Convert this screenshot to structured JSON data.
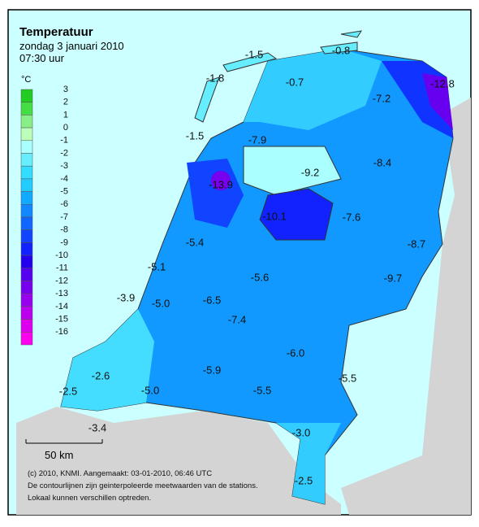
{
  "header": {
    "title": "Temperatuur",
    "date": "zondag 3 januari 2010",
    "time": "07:30 uur"
  },
  "legend": {
    "unit": "°C",
    "levels": [
      {
        "label": "3",
        "color": "#22cc22"
      },
      {
        "label": "2",
        "color": "#44dd44"
      },
      {
        "label": "1",
        "color": "#88ee88"
      },
      {
        "label": "0",
        "color": "#bbffbb"
      },
      {
        "label": "-1",
        "color": "#aaffff"
      },
      {
        "label": "-2",
        "color": "#66eeff"
      },
      {
        "label": "-3",
        "color": "#33ddff"
      },
      {
        "label": "-4",
        "color": "#22ccff"
      },
      {
        "label": "-5",
        "color": "#11aaff"
      },
      {
        "label": "-6",
        "color": "#1188ff"
      },
      {
        "label": "-7",
        "color": "#1166ff"
      },
      {
        "label": "-8",
        "color": "#1144ff"
      },
      {
        "label": "-9",
        "color": "#1122ff"
      },
      {
        "label": "-10",
        "color": "#2200ee"
      },
      {
        "label": "-11",
        "color": "#5500ee"
      },
      {
        "label": "-12",
        "color": "#7700ee"
      },
      {
        "label": "-13",
        "color": "#9900ee"
      },
      {
        "label": "-14",
        "color": "#bb00ee"
      },
      {
        "label": "-15",
        "color": "#dd00ee"
      },
      {
        "label": "-16",
        "color": "#ff00ee"
      }
    ]
  },
  "stations": [
    "-1.5",
    "-0.8",
    "-1.8",
    "-0.7",
    "-12.8",
    "-7.2",
    "-1.5",
    "-7.9",
    "-9.2",
    "-8.4",
    "-13.9",
    "-10.1",
    "-7.6",
    "-5.4",
    "-8.7",
    "-5.1",
    "-5.6",
    "-9.7",
    "-3.9",
    "-5.0",
    "-6.5",
    "-7.4",
    "-6.0",
    "-2.6",
    "-5.9",
    "-5.5",
    "-2.5",
    "-5.0",
    "-5.5",
    "-3.0",
    "-3.4",
    "-2.5"
  ],
  "scale": "50 km",
  "footer": [
    "(c) 2010, KNMI. Aangemaakt: 03-01-2010, 06:46 UTC",
    "De contourlijnen zijn geinterpoleerde meetwaarden van de stations.",
    "Lokaal kunnen verschillen optreden."
  ]
}
